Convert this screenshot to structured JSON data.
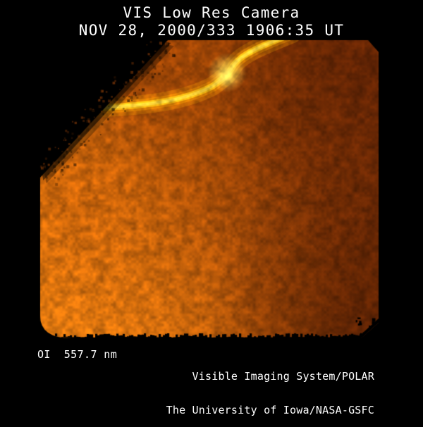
{
  "header": {
    "title": "VIS Low Res Camera",
    "timestamp": "NOV 28, 2000/333 1906:35 UT"
  },
  "footer": {
    "wavelength_label": "OI  557.7 nm",
    "credit_line1": "Visible Imaging System/POLAR",
    "credit_line2": "The University of Iowa/NASA-GSFC"
  },
  "image": {
    "description": "False-color auroral camera frame: bright yellow auroral arc curving across the upper portion, mottled orange airglow field brightest at lower left, black terminator wedge cutting the upper-left corner",
    "palette": {
      "background": "#000000",
      "text": "#ffffff",
      "field_bright": "#e67c10",
      "field_left": "#c85f08",
      "field_mid": "#9c4406",
      "field_right": "#6e2a04",
      "dark_top_right": "#5a2004",
      "dark_bottom_right": "#431603",
      "arc_glow": "#f59b06",
      "arc_core": "#ffc818",
      "arc_highlight": "#ffd840",
      "arc_blob": "#ffe25e",
      "terminator_halo": "#e88414",
      "edge_speckle": "#96420a"
    }
  }
}
